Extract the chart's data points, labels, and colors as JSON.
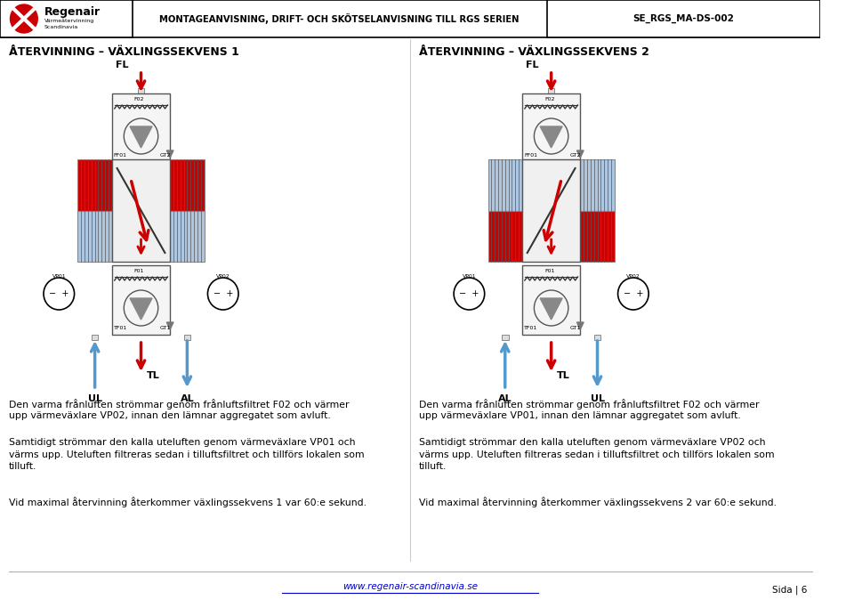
{
  "title_center": "MONTAGEANVISNING, DRIFT- OCH SKÖTSELANVISNING TILL RGS SERIEN",
  "title_right": "SE_RGS_MA-DS-002",
  "section1_title": "ÅTERVINNING – VÄXLINGSSEKVENS 1",
  "section2_title": "ÅTERVINNING – VÄXLINGSSEKVENS 2",
  "text1_para1": "Den varma frånluften strömmar genom frånluftsfiltret F02 och värmer\nupp värmeväxlare VP02, innan den lämnar aggregatet som avluft.",
  "text1_para2": "Samtidigt strömmar den kalla uteluften genom värmeväxlare VP01 och\nvärms upp. Uteluften filtreras sedan i tilluftsfiltret och tillförs lokalen som\ntilluft.",
  "text1_para3": "Vid maximal återvinning återkommer växlingssekvens 1 var 60:e sekund.",
  "text2_para1": "Den varma frånluften strömmar genom frånluftsfiltret F02 och värmer\nupp värmeväxlare VP01, innan den lämnar aggregatet som avluft.",
  "text2_para2": "Samtidigt strömmar den kalla uteluften genom värmeväxlare VP02 och\nvärms upp. Uteluften filtreras sedan i tilluftsfiltret och tillförs lokalen som\ntilluft.",
  "text2_para3": "Vid maximal återvinning återkommer växlingssekvens 2 var 60:e sekund.",
  "footer_link": "www.regenair-scandinavia.se",
  "footer_page": "Sida | 6",
  "bg_color": "#ffffff",
  "red_color": "#cc0000",
  "blue_color": "#aec6e0"
}
